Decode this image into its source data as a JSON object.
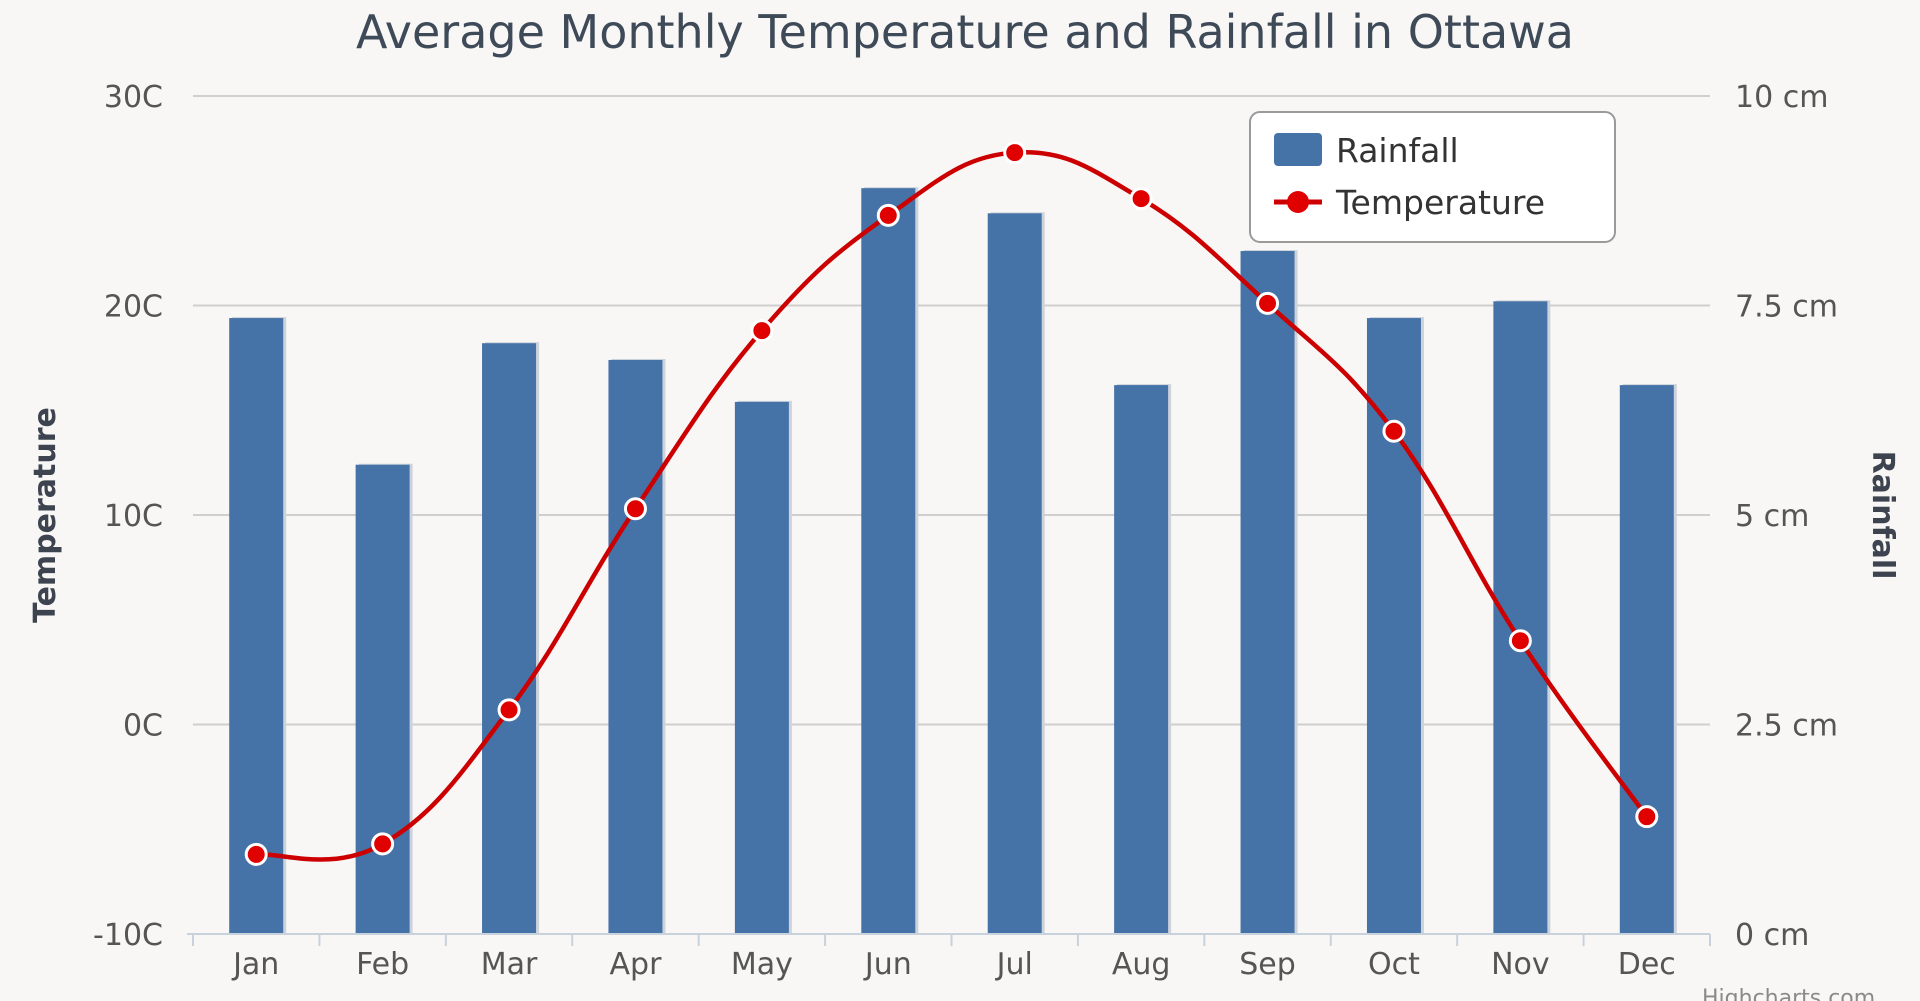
{
  "colors": {
    "rainfall": "#4572a7",
    "temperature": "#cc0000",
    "temperature_marker": "#e00000"
  },
  "chart_data": {
    "type": "bar",
    "title": "Average Monthly Temperature and Rainfall in Ottawa",
    "categories": [
      "Jan",
      "Feb",
      "Mar",
      "Apr",
      "May",
      "Jun",
      "Jul",
      "Aug",
      "Sep",
      "Oct",
      "Nov",
      "Dec"
    ],
    "series": [
      {
        "name": "Rainfall",
        "type": "bar",
        "axis": "right",
        "unit": "cm",
        "values": [
          7.35,
          5.6,
          7.05,
          6.85,
          6.35,
          8.9,
          8.6,
          6.55,
          8.15,
          7.35,
          7.55,
          6.55
        ]
      },
      {
        "name": "Temperature",
        "type": "line",
        "axis": "left",
        "unit": "C",
        "values": [
          -6.2,
          -5.7,
          0.7,
          10.3,
          18.8,
          24.3,
          27.3,
          25.1,
          20.1,
          14.0,
          4.0,
          -4.4
        ]
      }
    ],
    "y_left": {
      "label": "Temperature",
      "range": [
        -10,
        30
      ],
      "ticks": [
        -10,
        0,
        10,
        20,
        30
      ],
      "tick_labels": [
        "-10C",
        "0C",
        "10C",
        "20C",
        "30C"
      ]
    },
    "y_right": {
      "label": "Rainfall",
      "range": [
        0,
        10
      ],
      "ticks": [
        0,
        2.5,
        5,
        7.5,
        10
      ],
      "tick_labels": [
        "0 cm",
        "2.5 cm",
        "5 cm",
        "7.5 cm",
        "10 cm"
      ]
    },
    "legend": {
      "position": "top-right",
      "entries": [
        "Rainfall",
        "Temperature"
      ]
    },
    "credit": "Highcharts.com",
    "grid": true
  }
}
